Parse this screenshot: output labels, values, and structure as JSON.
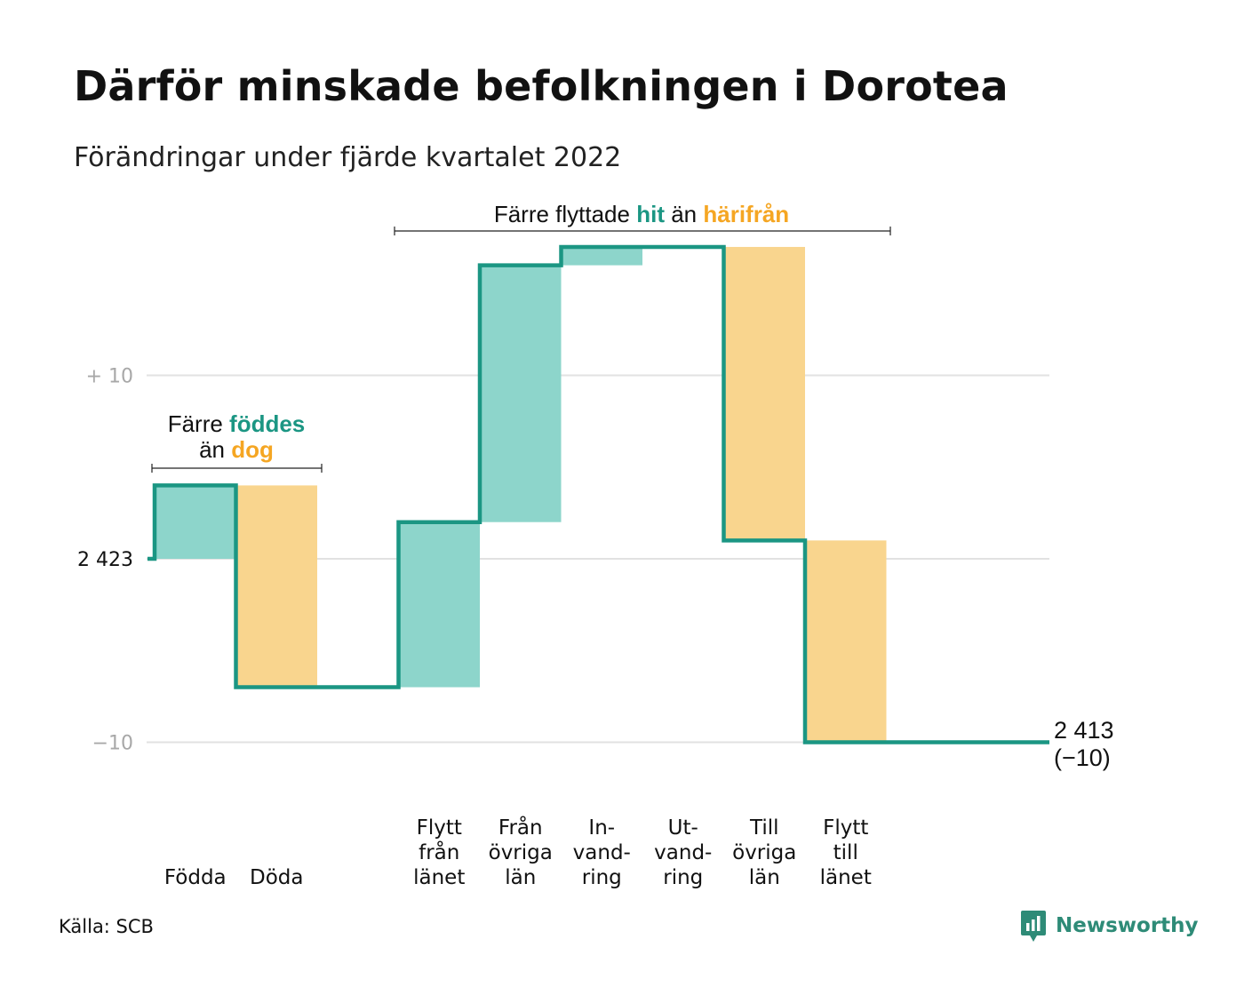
{
  "header": {
    "title": "Därför minskade befolkningen i Dorotea",
    "subtitle": "Förändringar under fjärde kvartalet 2022"
  },
  "footer": {
    "source": "Källa: SCB",
    "brand": "Newsworthy"
  },
  "colors": {
    "increase": "#8dd5cb",
    "decrease": "#f9d58e",
    "line": "#1b9683",
    "teal_text": "#1b9683",
    "orange_text": "#f5a623",
    "grid": "#e2e2e2"
  },
  "annotations": {
    "births": {
      "pre1": "Färre ",
      "key1": "föddes",
      "pre2": "än ",
      "key2": "dog"
    },
    "migration": {
      "pre1": "Färre flyttade ",
      "key1": "hit",
      "mid": " än ",
      "key2": "härifrån"
    }
  },
  "chart_data": {
    "type": "waterfall",
    "title": "Därför minskade befolkningen i Dorotea",
    "subtitle": "Förändringar under fjärde kvartalet 2022",
    "start_value": 2423,
    "start_label": "2 423",
    "end_value": 2413,
    "end_label": "2 413",
    "end_change_label": "(−10)",
    "y_ticks": [
      {
        "value": 10,
        "label": "+ 10"
      },
      {
        "value": 0,
        "label": "2 423"
      },
      {
        "value": -10,
        "label": "−10"
      }
    ],
    "ylim": [
      -11,
      17.5
    ],
    "grid": true,
    "categories": [
      {
        "lines": [
          "Födda"
        ],
        "change": 4
      },
      {
        "lines": [
          "Döda"
        ],
        "change": -11
      },
      {
        "lines": [
          ""
        ],
        "change": 0
      },
      {
        "lines": [
          "Flytt",
          "från",
          "länet"
        ],
        "change": 9
      },
      {
        "lines": [
          "Från",
          "övriga",
          "län"
        ],
        "change": 14
      },
      {
        "lines": [
          "In-",
          "vand-",
          "ring"
        ],
        "change": 1
      },
      {
        "lines": [
          "Ut-",
          "vand-",
          "ring"
        ],
        "change": 0
      },
      {
        "lines": [
          "Till",
          "övriga",
          "län"
        ],
        "change": -16
      },
      {
        "lines": [
          "Flytt",
          "till",
          "länet"
        ],
        "change": -11
      }
    ]
  }
}
